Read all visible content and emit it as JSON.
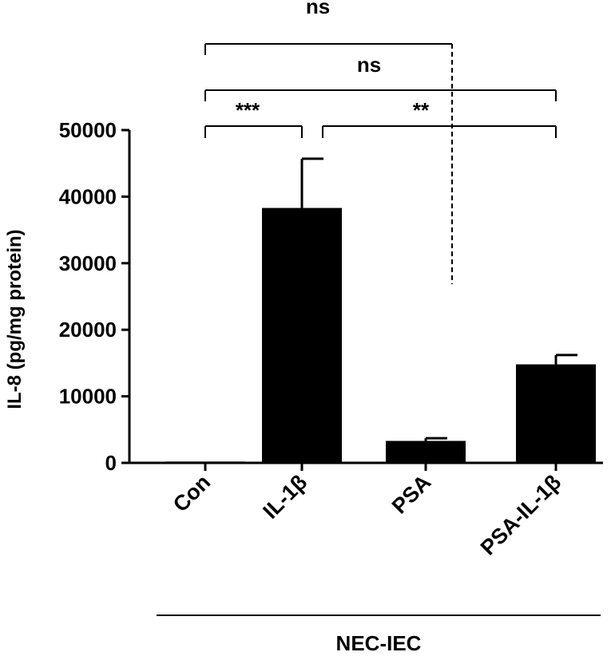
{
  "chart_data": {
    "type": "bar",
    "title": "",
    "xlabel": "",
    "ylabel": "IL-8 (pg/mg protein)",
    "ylim": [
      0,
      50000
    ],
    "yticks": [
      0,
      10000,
      20000,
      30000,
      40000,
      50000
    ],
    "ytick_labels": [
      "0",
      "10000",
      "20000",
      "30000",
      "40000",
      "50000"
    ],
    "categories": [
      "Con",
      "IL-1β",
      "PSA",
      "PSA-IL-1β"
    ],
    "values": [
      200,
      38300,
      3300,
      14800
    ],
    "error": [
      0,
      7400,
      400,
      1400
    ],
    "bar_color": "#000000",
    "grid": false,
    "group_label": "NEC-IEC",
    "significance": [
      {
        "from": "Con",
        "to": "IL-1β",
        "label": "***"
      },
      {
        "from": "IL-1β",
        "to": "PSA-IL-1β",
        "label": "**"
      },
      {
        "from": "Con",
        "to": "PSA-IL-1β",
        "label": "ns"
      },
      {
        "from": "Con",
        "to": "PSA",
        "label": "ns"
      }
    ]
  }
}
